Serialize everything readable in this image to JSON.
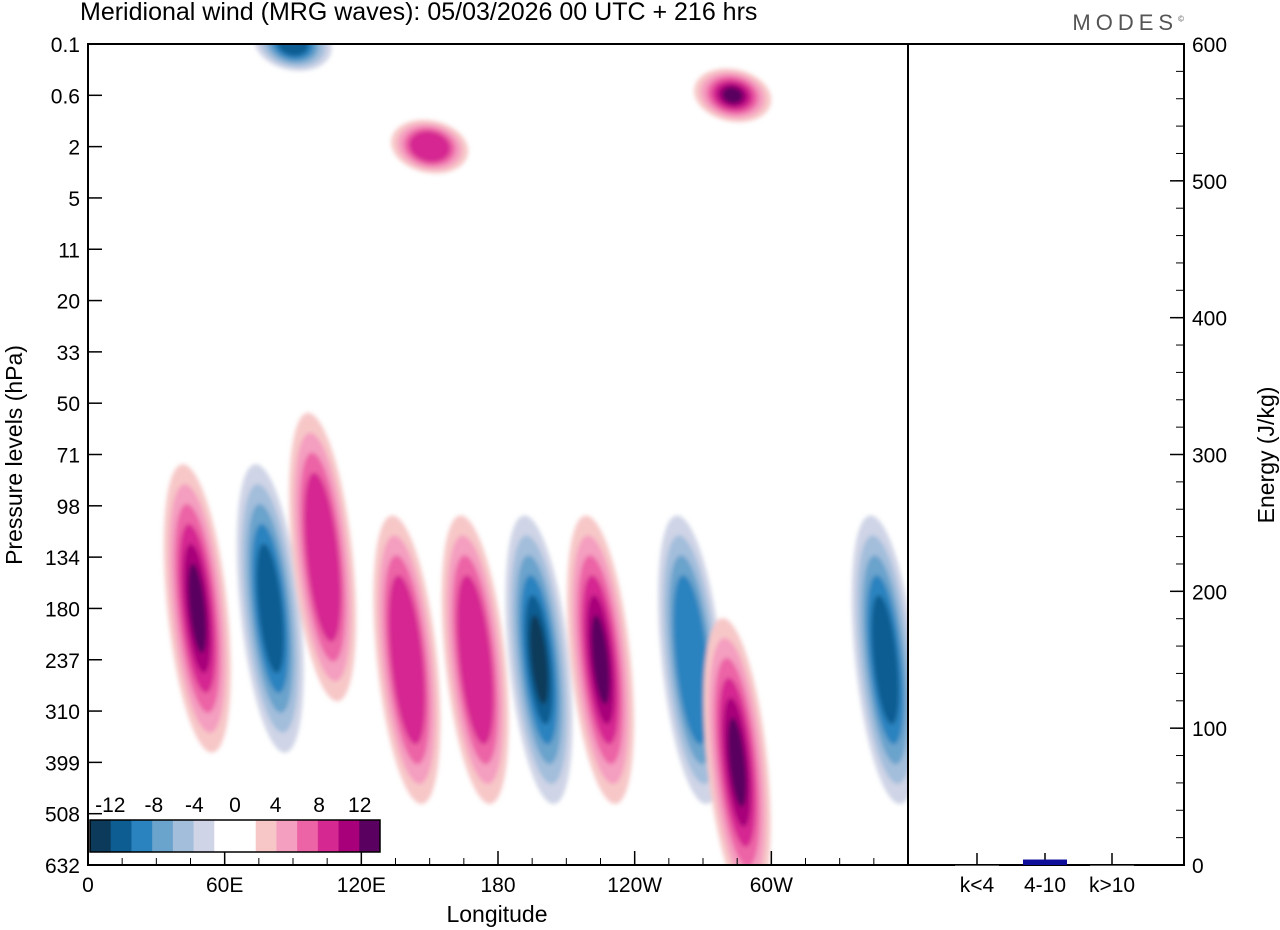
{
  "title": "Meridional wind (MRG waves):  05/03/2026  00 UTC  + 216 hrs",
  "brand": "MODES",
  "colors": {
    "neg": [
      "#0b3a5a",
      "#0e5d92",
      "#2a83bf",
      "#6aa3cc",
      "#a3bedb",
      "#cfd4e6"
    ],
    "pos": [
      "#f7c7c7",
      "#f49ec0",
      "#ec64a6",
      "#d52891",
      "#a8007a",
      "#5a0060"
    ],
    "bar": "#0e0e9a"
  },
  "chart_data": [
    {
      "type": "heatmap",
      "title": "Meridional wind (MRG waves)",
      "xlabel": "Longitude",
      "ylabel": "Pressure levels (hPa)",
      "x_ticks": [
        "0",
        "60E",
        "120E",
        "180",
        "120W",
        "60W"
      ],
      "x_tick_values": [
        0,
        60,
        120,
        180,
        240,
        300
      ],
      "xlim": [
        0,
        360
      ],
      "y_ticks": [
        "0.1",
        "0.6",
        "2",
        "5",
        "11",
        "20",
        "33",
        "50",
        "71",
        "98",
        "134",
        "180",
        "237",
        "310",
        "399",
        "508",
        "632"
      ],
      "colorbar": {
        "labels": [
          "-12",
          "-8",
          "-4",
          "0",
          "4",
          "8",
          "12"
        ],
        "levels": [
          -14,
          -12,
          -10,
          -8,
          -6,
          -4,
          -2,
          2,
          4,
          6,
          8,
          10,
          12,
          14
        ]
      },
      "features": [
        {
          "lon": 48,
          "level": "180",
          "value": 11,
          "sign": "pos"
        },
        {
          "lon": 80,
          "level": "180",
          "value": -9,
          "sign": "neg"
        },
        {
          "lon": 103,
          "level": "134",
          "value": 8,
          "sign": "pos"
        },
        {
          "lon": 140,
          "level": "237",
          "value": 8,
          "sign": "pos"
        },
        {
          "lon": 170,
          "level": "237",
          "value": 8,
          "sign": "pos"
        },
        {
          "lon": 198,
          "level": "237",
          "value": -15,
          "sign": "neg"
        },
        {
          "lon": 225,
          "level": "237",
          "value": 13,
          "sign": "pos"
        },
        {
          "lon": 265,
          "level": "237",
          "value": -8,
          "sign": "neg"
        },
        {
          "lon": 285,
          "level": "399",
          "value": 11,
          "sign": "pos"
        },
        {
          "lon": 350,
          "level": "237",
          "value": -9,
          "sign": "neg"
        },
        {
          "lon": 90,
          "level": "0.1",
          "value": -9,
          "sign": "neg"
        },
        {
          "lon": 283,
          "level": "0.6",
          "value": 11,
          "sign": "pos"
        },
        {
          "lon": 150,
          "level": "2",
          "value": 8,
          "sign": "pos"
        }
      ]
    },
    {
      "type": "bar",
      "categories": [
        "k<4",
        "4-10",
        "k>10"
      ],
      "values": [
        0,
        4,
        0
      ],
      "ylabel": "Energy (J/kg)",
      "ylim": [
        0,
        600
      ],
      "y_ticks": [
        "0",
        "100",
        "200",
        "300",
        "400",
        "500",
        "600"
      ]
    }
  ]
}
